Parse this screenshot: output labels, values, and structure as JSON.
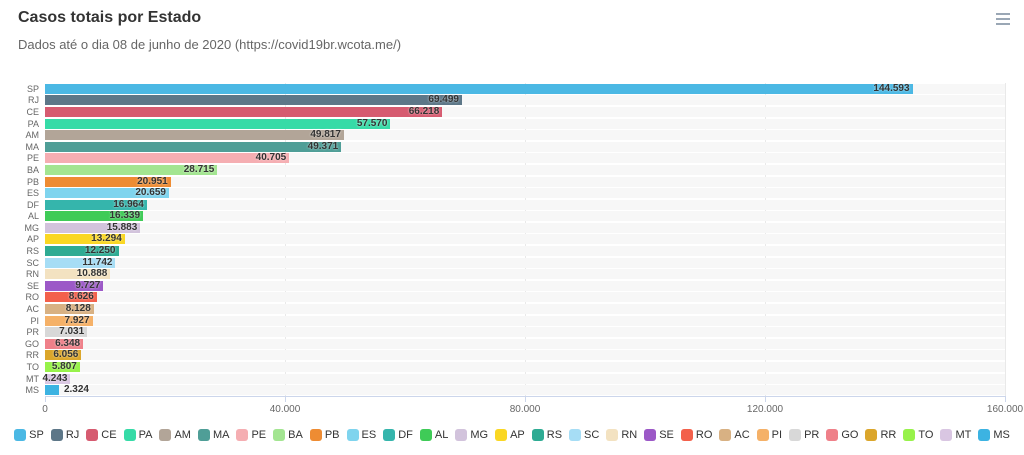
{
  "header": {
    "title": "Casos totais por Estado",
    "subtitle": "Dados até o dia 08 de junho de 2020 (https://covid19br.wcota.me/)"
  },
  "colors": {
    "title": "#333333",
    "subtitle": "#666666",
    "track": "#f7f7f7",
    "axis": "#ccd6eb",
    "gridline": "#e9e9e9",
    "tick_label": "#666666",
    "data_label": "#333333",
    "hamburger": "#9aa7b5"
  },
  "chart_data": {
    "type": "bar",
    "orientation": "horizontal",
    "title": "Casos totais por Estado",
    "subtitle": "Dados até o dia 08 de junho de 2020 (https://covid19br.wcota.me/)",
    "xlabel": "",
    "ylabel": "",
    "xlim": [
      0,
      160000
    ],
    "x_ticks": [
      0,
      40000,
      80000,
      120000,
      160000
    ],
    "x_tick_labels": [
      "0",
      "40.000",
      "80.000",
      "120.000",
      "160.000"
    ],
    "grid": true,
    "legend_position": "bottom",
    "categories": [
      "SP",
      "RJ",
      "CE",
      "PA",
      "AM",
      "MA",
      "PE",
      "BA",
      "PB",
      "ES",
      "DF",
      "AL",
      "MG",
      "AP",
      "RS",
      "SC",
      "RN",
      "SE",
      "RO",
      "AC",
      "PI",
      "PR",
      "GO",
      "RR",
      "TO",
      "MT",
      "MS"
    ],
    "values": [
      144593,
      69499,
      66218,
      57570,
      49817,
      49371,
      40705,
      28715,
      20951,
      20659,
      16964,
      16339,
      15883,
      13294,
      12250,
      11742,
      10888,
      9727,
      8626,
      8128,
      7927,
      7031,
      6348,
      6056,
      5807,
      4243,
      2324
    ],
    "value_labels": [
      "144.593",
      "69.499",
      "66.218",
      "57.570",
      "49.817",
      "49.371",
      "40.705",
      "28.715",
      "20.951",
      "20.659",
      "16.964",
      "16.339",
      "15.883",
      "13.294",
      "12.250",
      "11.742",
      "10.888",
      "9.727",
      "8.626",
      "8.128",
      "7.927",
      "7.031",
      "6.348",
      "6.056",
      "5.807",
      "4.243",
      "2.324"
    ],
    "bar_colors": [
      "#4bb8e4",
      "#5d7788",
      "#d65b70",
      "#36dba7",
      "#b2a598",
      "#4f9e97",
      "#f5aeb2",
      "#a3e591",
      "#ee8c33",
      "#7fd4ee",
      "#35b5ac",
      "#3fcb57",
      "#d2c3dc",
      "#fad723",
      "#2eab93",
      "#a6ddf5",
      "#f3e2c1",
      "#9c59c7",
      "#f3604b",
      "#d8b183",
      "#f5b168",
      "#d8d8d8",
      "#ef8089",
      "#dba62b",
      "#97f24a",
      "#d9c6e2",
      "#3cb3e2"
    ]
  }
}
